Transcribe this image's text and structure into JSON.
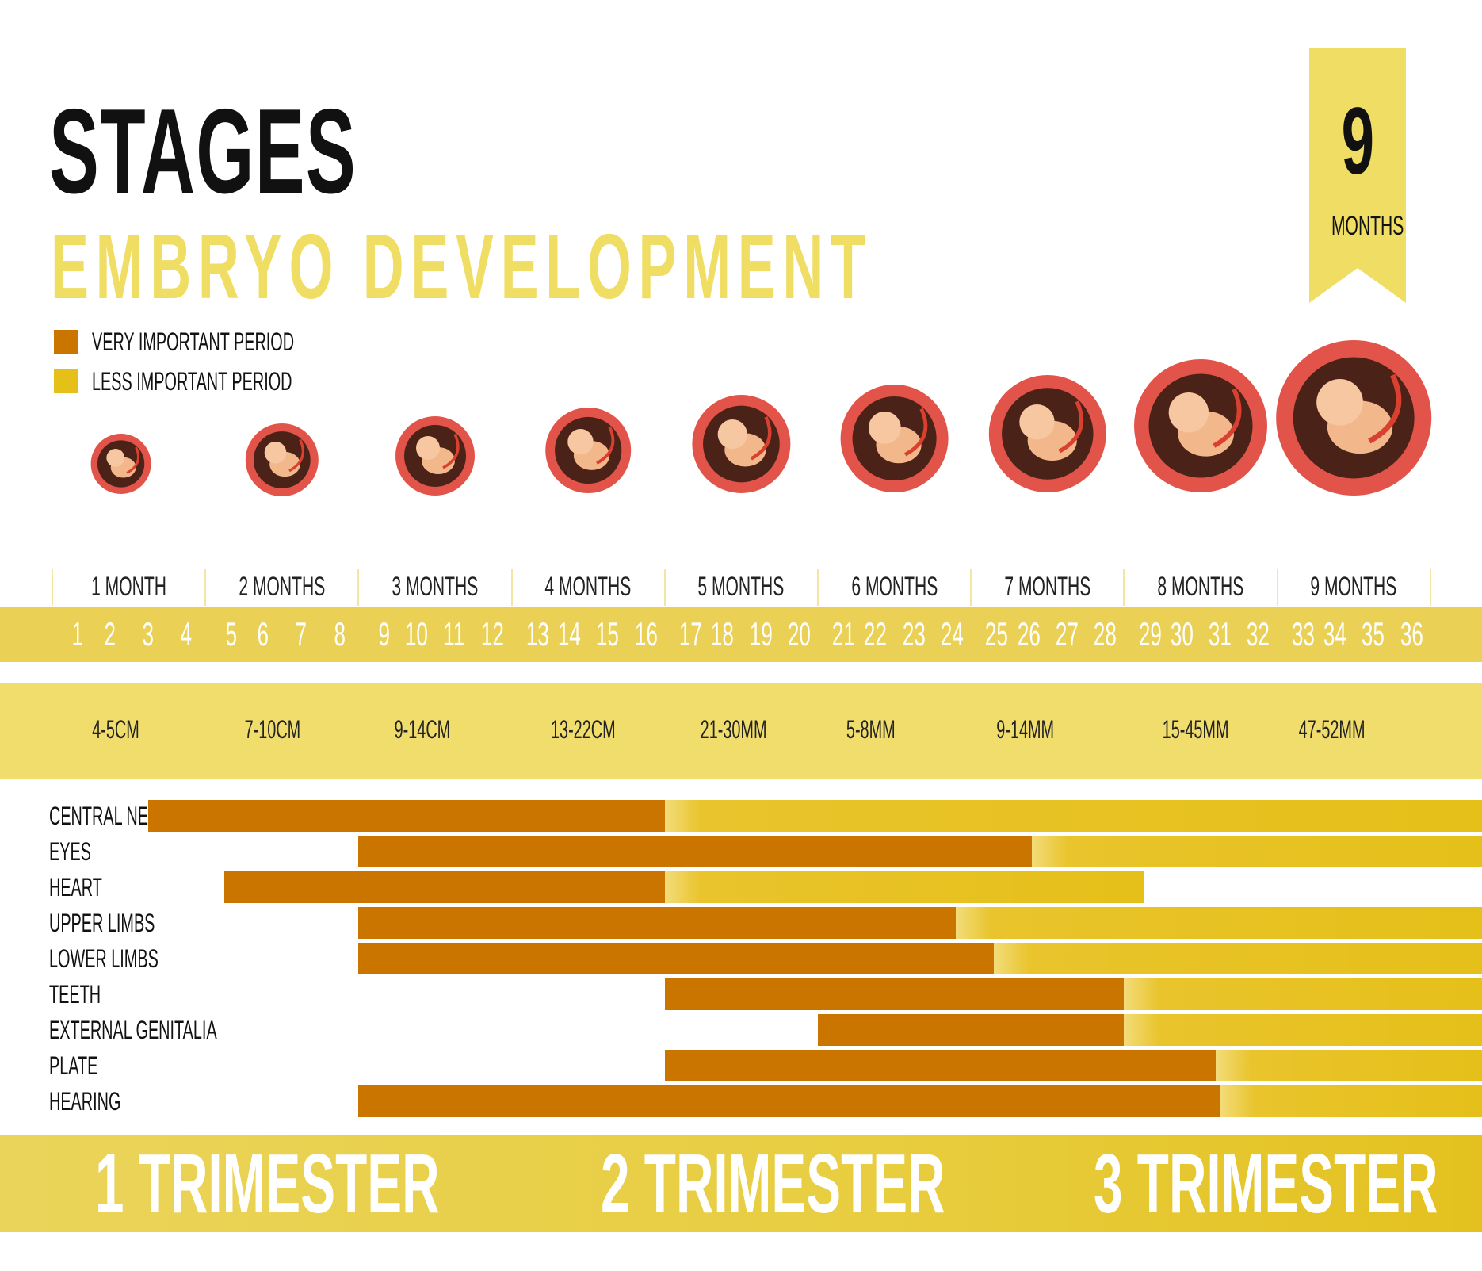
{
  "title": "STAGES",
  "subtitle": "EMBRYO DEVELOPMENT",
  "badge": {
    "number": "9",
    "label": "MONTHS"
  },
  "legend": [
    {
      "label": "VERY IMPORTANT PERIOD",
      "color": "#c97500"
    },
    {
      "label": "LESS IMPORTANT PERIOD",
      "color": "#e5c019"
    }
  ],
  "months": [
    "1 MONTH",
    "2 MONTHS",
    "3 MONTHS",
    "4 MONTHS",
    "5 MONTHS",
    "6 MONTHS",
    "7 MONTHS",
    "8 MONTHS",
    "9 MONTHS"
  ],
  "weeks": [
    "1",
    "2",
    "3",
    "4",
    "5",
    "6",
    "7",
    "8",
    "9",
    "10",
    "11",
    "12",
    "13",
    "14",
    "15",
    "16",
    "17",
    "18",
    "19",
    "20",
    "21",
    "22",
    "23",
    "24",
    "25",
    "26",
    "27",
    "28",
    "29",
    "30",
    "31",
    "32",
    "33",
    "34",
    "35",
    "36"
  ],
  "sizes": [
    "4-5CM",
    "7-10CM",
    "9-14CM",
    "13-22CM",
    "21-30MM",
    "5-8MM",
    "9-14MM",
    "15-45MM",
    "47-52MM"
  ],
  "organs": [
    {
      "label": "CENTRAL  NERVOUS SYSTEM",
      "very_start_week": 3.5,
      "very_end_week": 17,
      "less_end_week": 36
    },
    {
      "label": "EYES",
      "very_start_week": 9,
      "very_end_week": 26.6,
      "less_end_week": 36
    },
    {
      "label": "HEART",
      "very_start_week": 5.5,
      "very_end_week": 17,
      "less_end_week": 29.5
    },
    {
      "label": "UPPER LIMBS",
      "very_start_week": 9,
      "very_end_week": 24.6,
      "less_end_week": 36
    },
    {
      "label": "LOWER LIMBS",
      "very_start_week": 9,
      "very_end_week": 25.6,
      "less_end_week": 36
    },
    {
      "label": "TEETH",
      "very_start_week": 17,
      "very_end_week": 29,
      "less_end_week": 36
    },
    {
      "label": "EXTERNAL GENITALIA",
      "very_start_week": 21,
      "very_end_week": 29,
      "less_end_week": 36
    },
    {
      "label": "PLATE",
      "very_start_week": 17,
      "very_end_week": 31.4,
      "less_end_week": 36
    },
    {
      "label": "HEARING",
      "very_start_week": 9,
      "very_end_week": 31.5,
      "less_end_week": 36
    }
  ],
  "trimesters": [
    "1 TRIMESTER",
    "2 TRIMESTER",
    "3 TRIMESTER"
  ],
  "colors": {
    "accent_yellow": "#f0dd63",
    "band_yellow": "#ead054",
    "very_important": "#c97500",
    "less_important": "#e5c019",
    "embryo_sac": "#e2544a"
  }
}
